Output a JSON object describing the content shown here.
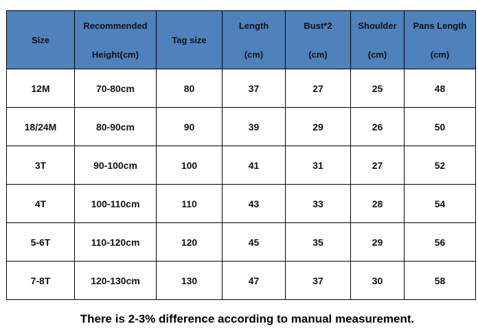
{
  "table": {
    "header": [
      [
        "Size"
      ],
      [
        "Recommended",
        "Height(cm)"
      ],
      [
        "Tag size"
      ],
      [
        "Length",
        "(cm)"
      ],
      [
        "Bust*2",
        "(cm)"
      ],
      [
        "Shoulder",
        "(cm)"
      ],
      [
        "Pans Length",
        "(cm)"
      ]
    ],
    "rows": [
      [
        "12M",
        "70-80cm",
        80,
        37,
        27,
        25,
        48
      ],
      [
        "18/24M",
        "80-90cm",
        90,
        39,
        29,
        26,
        50
      ],
      [
        "3T",
        "90-100cm",
        100,
        41,
        31,
        27,
        52
      ],
      [
        "4T",
        "100-110cm",
        110,
        43,
        33,
        28,
        54
      ],
      [
        "5-6T",
        "110-120cm",
        120,
        45,
        35,
        29,
        56
      ],
      [
        "7-8T",
        "120-130cm",
        130,
        47,
        37,
        30,
        58
      ]
    ]
  },
  "note": "There is 2-3% difference according to manual measurement."
}
